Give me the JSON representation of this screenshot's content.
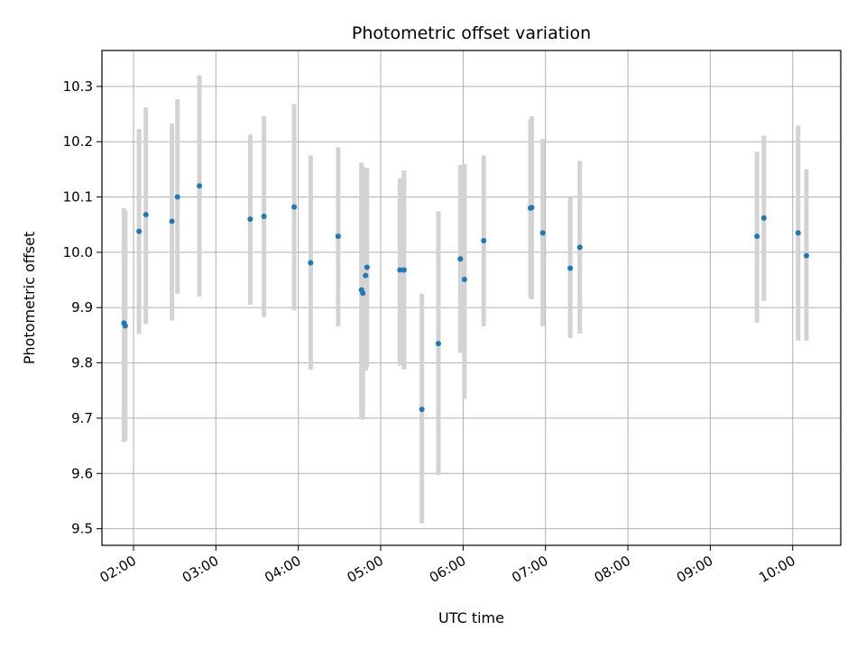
{
  "chart_data": {
    "type": "scatter",
    "title": "Photometric offset variation",
    "xlabel": "UTC time",
    "ylabel": "Photometric offset",
    "xlim": [
      "01:37",
      "10:35"
    ],
    "ylim": [
      9.47,
      10.365
    ],
    "x_ticks": [
      "02:00",
      "03:00",
      "04:00",
      "05:00",
      "06:00",
      "07:00",
      "08:00",
      "09:00",
      "10:00"
    ],
    "y_ticks": [
      9.5,
      9.6,
      9.7,
      9.8,
      9.9,
      10.0,
      10.1,
      10.2,
      10.3
    ],
    "grid": true,
    "colors": {
      "point": "#1f77b4",
      "errorbar": "#d3d3d3",
      "grid": "#b0b0b0"
    },
    "points": [
      {
        "x": "01:53",
        "y": 9.872,
        "err_low": 9.657,
        "err_high": 10.08
      },
      {
        "x": "01:54",
        "y": 9.867,
        "err_low": 9.66,
        "err_high": 10.075
      },
      {
        "x": "02:04",
        "y": 10.038,
        "err_low": 9.852,
        "err_high": 10.223
      },
      {
        "x": "02:09",
        "y": 10.068,
        "err_low": 9.87,
        "err_high": 10.262
      },
      {
        "x": "02:28",
        "y": 10.056,
        "err_low": 9.877,
        "err_high": 10.233
      },
      {
        "x": "02:32",
        "y": 10.1,
        "err_low": 9.925,
        "err_high": 10.277
      },
      {
        "x": "02:48",
        "y": 10.12,
        "err_low": 9.92,
        "err_high": 10.32
      },
      {
        "x": "03:25",
        "y": 10.06,
        "err_low": 9.905,
        "err_high": 10.213
      },
      {
        "x": "03:35",
        "y": 10.065,
        "err_low": 9.883,
        "err_high": 10.246
      },
      {
        "x": "03:57",
        "y": 10.082,
        "err_low": 9.895,
        "err_high": 10.268
      },
      {
        "x": "04:09",
        "y": 9.981,
        "err_low": 9.788,
        "err_high": 10.175
      },
      {
        "x": "04:29",
        "y": 10.029,
        "err_low": 9.866,
        "err_high": 10.19
      },
      {
        "x": "04:46",
        "y": 9.932,
        "err_low": 9.7,
        "err_high": 10.162
      },
      {
        "x": "04:47",
        "y": 9.926,
        "err_low": 9.697,
        "err_high": 10.155
      },
      {
        "x": "04:49",
        "y": 9.958,
        "err_low": 9.786,
        "err_high": 10.15
      },
      {
        "x": "04:50",
        "y": 9.973,
        "err_low": 9.793,
        "err_high": 10.153
      },
      {
        "x": "05:14",
        "y": 9.968,
        "err_low": 9.795,
        "err_high": 10.134
      },
      {
        "x": "05:17",
        "y": 9.968,
        "err_low": 9.788,
        "err_high": 10.148
      },
      {
        "x": "05:30",
        "y": 9.716,
        "err_low": 9.51,
        "err_high": 9.925
      },
      {
        "x": "05:42",
        "y": 9.835,
        "err_low": 9.597,
        "err_high": 10.074
      },
      {
        "x": "05:58",
        "y": 9.988,
        "err_low": 9.818,
        "err_high": 10.158
      },
      {
        "x": "06:01",
        "y": 9.951,
        "err_low": 9.735,
        "err_high": 10.16
      },
      {
        "x": "06:15",
        "y": 10.021,
        "err_low": 9.866,
        "err_high": 10.175
      },
      {
        "x": "06:49",
        "y": 10.08,
        "err_low": 9.918,
        "err_high": 10.24
      },
      {
        "x": "06:50",
        "y": 10.081,
        "err_low": 9.915,
        "err_high": 10.246
      },
      {
        "x": "06:58",
        "y": 10.035,
        "err_low": 9.866,
        "err_high": 10.205
      },
      {
        "x": "07:18",
        "y": 9.971,
        "err_low": 9.845,
        "err_high": 10.1
      },
      {
        "x": "07:25",
        "y": 10.009,
        "err_low": 9.853,
        "err_high": 10.165
      },
      {
        "x": "09:34",
        "y": 10.029,
        "err_low": 9.873,
        "err_high": 10.182
      },
      {
        "x": "09:39",
        "y": 10.062,
        "err_low": 9.912,
        "err_high": 10.211
      },
      {
        "x": "10:04",
        "y": 10.035,
        "err_low": 9.84,
        "err_high": 10.229
      },
      {
        "x": "10:10",
        "y": 9.994,
        "err_low": 9.84,
        "err_high": 10.15
      }
    ]
  }
}
